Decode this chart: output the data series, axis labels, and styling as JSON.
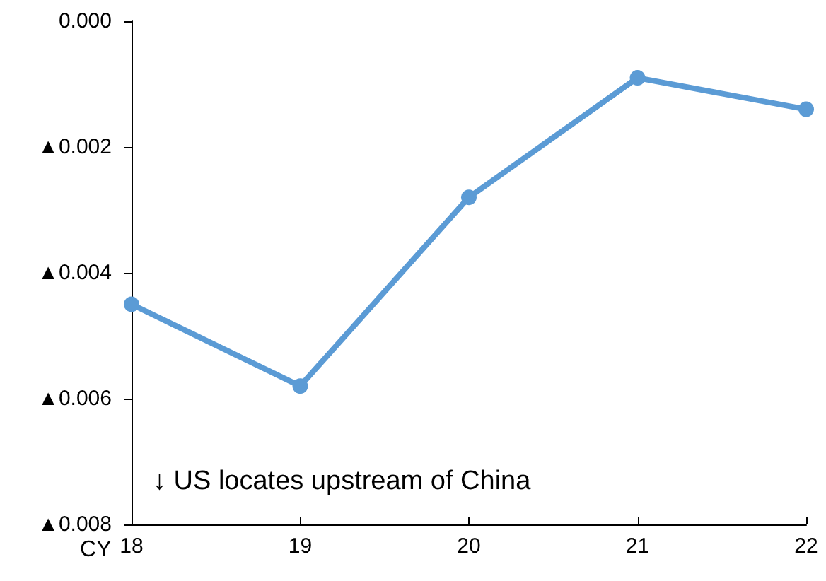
{
  "chart_data": {
    "type": "line",
    "xlabel": "CY",
    "categories": [
      "18",
      "19",
      "20",
      "21",
      "22"
    ],
    "series": [
      {
        "color": "#5b9bd5",
        "values": [
          -0.0045,
          -0.0058,
          -0.0028,
          -0.0009,
          -0.0014
        ]
      }
    ],
    "ylim": [
      -0.008,
      0
    ],
    "yticks": [
      {
        "value": -0.008,
        "label": "▲0.008"
      },
      {
        "value": -0.006,
        "label": "▲0.006"
      },
      {
        "value": -0.004,
        "label": "▲0.004"
      },
      {
        "value": -0.002,
        "label": "▲0.002"
      },
      {
        "value": 0,
        "label": "0.000"
      }
    ],
    "annotations": [
      "↓ US locates upstream of China"
    ],
    "grid": false,
    "marker": "circle",
    "line_style": "solid"
  }
}
